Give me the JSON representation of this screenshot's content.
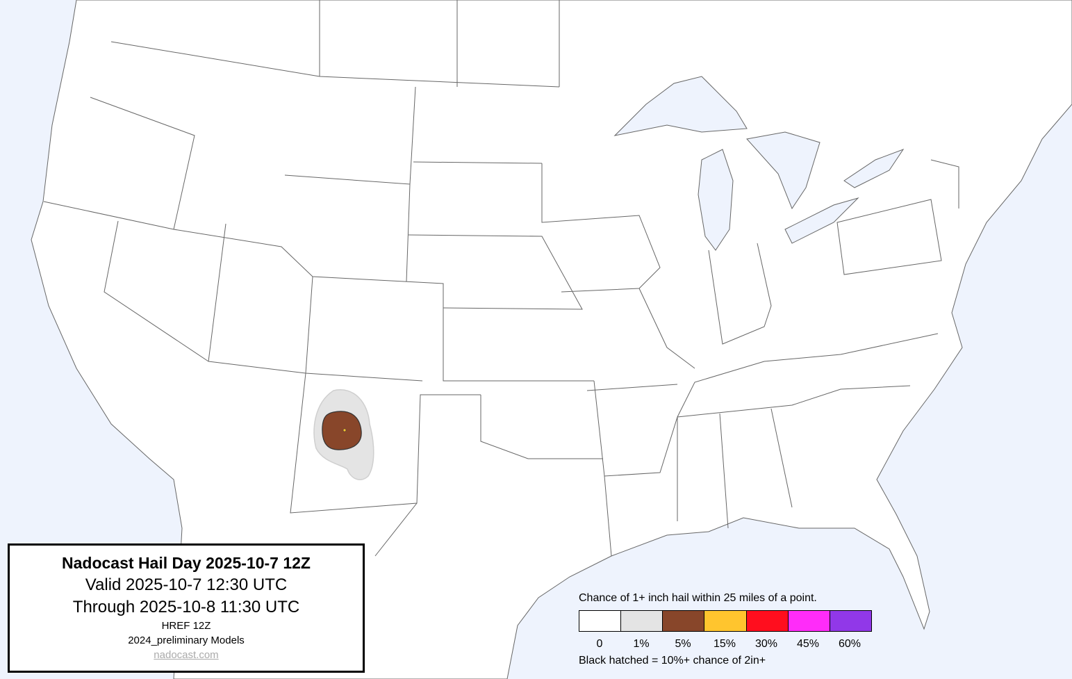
{
  "title_box": {
    "title": "Nadocast Hail Day 2025-10-7 12Z",
    "valid": "Valid 2025-10-7 12:30 UTC",
    "through": "Through 2025-10-8 11:30 UTC",
    "model": "HREF 12Z",
    "models_version": "2024_preliminary Models",
    "link": "nadocast.com"
  },
  "legend": {
    "caption": "Chance of 1+ inch hail within 25 miles of a point.",
    "bins": [
      {
        "label": "0",
        "color": "#ffffff"
      },
      {
        "label": "1%",
        "color": "#e4e4e4"
      },
      {
        "label": "5%",
        "color": "#88462a"
      },
      {
        "label": "15%",
        "color": "#ffc52e"
      },
      {
        "label": "30%",
        "color": "#ff0e1e"
      },
      {
        "label": "45%",
        "color": "#ff2cf9"
      },
      {
        "label": "60%",
        "color": "#9138e8"
      }
    ],
    "note": "Black hatched = 10%+ chance of 2in+"
  },
  "map": {
    "ocean_color": "#eef3fd",
    "land_color": "#ffffff",
    "forecast_area": {
      "region": "New Mexico",
      "max_category": "5%"
    }
  }
}
